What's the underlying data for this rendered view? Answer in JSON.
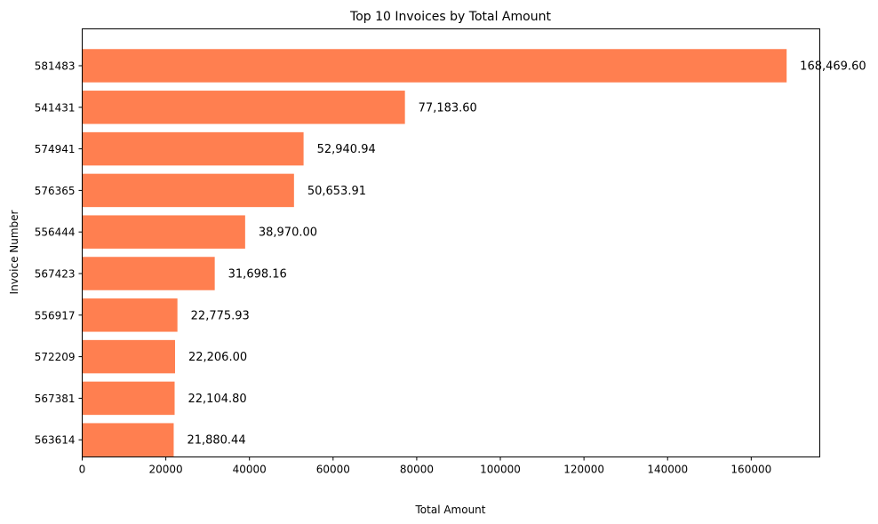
{
  "chart_data": {
    "type": "bar",
    "orientation": "horizontal",
    "title": "Top 10 Invoices by Total Amount",
    "xlabel": "Total Amount",
    "ylabel": "Invoice Number",
    "xlim": [
      0,
      176400
    ],
    "x_ticks": [
      0,
      20000,
      40000,
      60000,
      80000,
      100000,
      120000,
      140000,
      160000
    ],
    "x_tick_labels": [
      "0",
      "20000",
      "40000",
      "60000",
      "80000",
      "100000",
      "120000",
      "140000",
      "160000"
    ],
    "categories": [
      "581483",
      "541431",
      "574941",
      "576365",
      "556444",
      "567423",
      "556917",
      "572209",
      "567381",
      "563614"
    ],
    "values": [
      168469.6,
      77183.6,
      52940.94,
      50653.91,
      38970.0,
      31698.16,
      22775.93,
      22206.0,
      22104.8,
      21880.44
    ],
    "value_labels": [
      "168,469.60",
      "77,183.60",
      "52,940.94",
      "50,653.91",
      "38,970.00",
      "31,698.16",
      "22,775.93",
      "22,206.00",
      "22,104.80",
      "21,880.44"
    ],
    "grid": false,
    "legend": "none",
    "bar_color": "#ff7f50"
  }
}
